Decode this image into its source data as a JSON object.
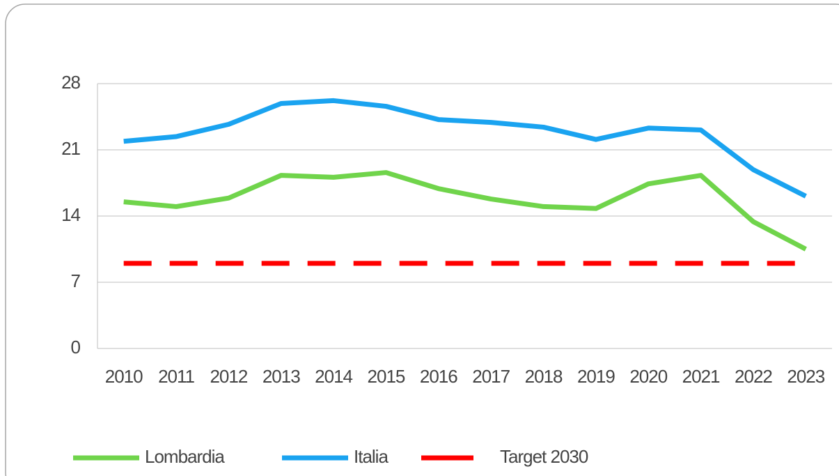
{
  "chart_data": {
    "type": "line",
    "categories": [
      "2010",
      "2011",
      "2012",
      "2013",
      "2014",
      "2015",
      "2016",
      "2017",
      "2018",
      "2019",
      "2020",
      "2021",
      "2022",
      "2023"
    ],
    "series": [
      {
        "name": "Lombardia",
        "color": "#70d44b",
        "values": [
          15.5,
          15.0,
          15.9,
          18.3,
          18.1,
          18.6,
          16.9,
          15.8,
          15.0,
          14.8,
          17.4,
          18.3,
          13.4,
          10.5
        ]
      },
      {
        "name": "Italia",
        "color": "#1aa3f0",
        "values": [
          21.9,
          22.4,
          23.7,
          25.9,
          26.2,
          25.6,
          24.2,
          23.9,
          23.4,
          22.1,
          23.3,
          23.1,
          18.9,
          16.1
        ]
      },
      {
        "name": "Target 2030",
        "color": "#ff0000",
        "dashed": true,
        "values": [
          9,
          9,
          9,
          9,
          9,
          9,
          9,
          9,
          9,
          9,
          9,
          9,
          9,
          9
        ]
      }
    ],
    "ylim": [
      0,
      28
    ],
    "yticks": [
      0,
      7,
      14,
      21,
      28
    ],
    "grid": true
  }
}
